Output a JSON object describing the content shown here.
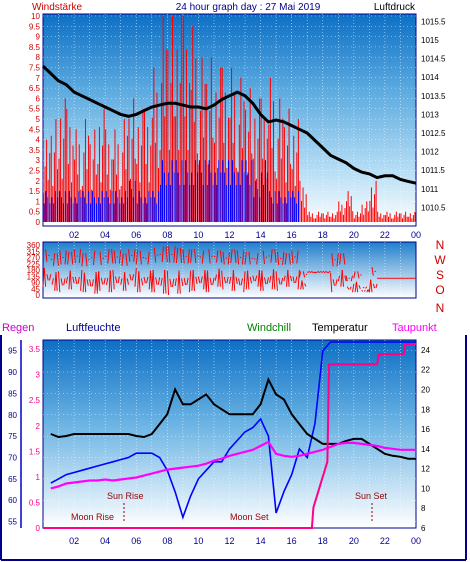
{
  "header": {
    "left_label": "Windstärke",
    "title": "24 hour graph day : 27 Mai 2019",
    "right_label": "Luftdruck"
  },
  "middle": {
    "compass": [
      "N",
      "W",
      "S",
      "O",
      "N"
    ]
  },
  "bottom_header": {
    "regen": "Regen",
    "luftfeuchte": "Luftfeuchte",
    "windchill": "Windchill",
    "temperatur": "Temperatur",
    "taupunkt": "Taupunkt"
  },
  "annotations": {
    "sun_rise": "Sun Rise",
    "sun_set": "Sun Set",
    "moon_rise": "Moon Rise",
    "moon_set": "Moon Set"
  },
  "colors": {
    "wind": "#ff0000",
    "gust": "#0000ff",
    "pressure": "#000000",
    "humidity": "#0000ff",
    "temperature": "#000000",
    "dewpoint": "#ff00ff",
    "rain": "#ff0088",
    "left_scale": "#cc0000",
    "right_scale": "#000000"
  },
  "chart_data": [
    {
      "type": "bar",
      "name_hint": "wind",
      "x": [
        0.5,
        1,
        1.5,
        2,
        2.5,
        3,
        3.5,
        4,
        4.5,
        5,
        5.5,
        6,
        6.5,
        7,
        7.5,
        8,
        8.5,
        9,
        9.5,
        10,
        10.5,
        11,
        11.5,
        12,
        12.5,
        13,
        13.5,
        14,
        14.5,
        15,
        15.5,
        16,
        16.5,
        17,
        17.5,
        18,
        18.5,
        19,
        19.5,
        20,
        20.5,
        21,
        21.5,
        22,
        22.5,
        23,
        23.5,
        24
      ],
      "wind_max": [
        4,
        5,
        6,
        5.5,
        4.5,
        5,
        4.5,
        5.5,
        4.5,
        4.5,
        5,
        6,
        5.5,
        5.5,
        7.5,
        10,
        10,
        10,
        10,
        9.5,
        8,
        8,
        7.5,
        7.5,
        7.5,
        7,
        6.5,
        6,
        6,
        7,
        6,
        5.5,
        5,
        2,
        0.5,
        0.5,
        0.5,
        0.5,
        1,
        1.5,
        0.5,
        1,
        2,
        0.5,
        0.5,
        0.5,
        0.5,
        0.5
      ],
      "gust_max": [
        1.5,
        1.5,
        1.5,
        1.5,
        1.5,
        1.5,
        1.5,
        1.5,
        1.5,
        1.5,
        1.5,
        2,
        1.5,
        1.5,
        1.5,
        3,
        3,
        3,
        3,
        3,
        3,
        3,
        3,
        3,
        3,
        3,
        3,
        2,
        3,
        1.5,
        1.5,
        1.5,
        1.5,
        0,
        0,
        0,
        0,
        0,
        0,
        0,
        0,
        0,
        0,
        0,
        0,
        0,
        0,
        0
      ],
      "y_left": [
        0,
        0.5,
        1,
        1.5,
        2,
        2.5,
        3,
        3.5,
        4,
        4.5,
        5,
        5.5,
        6,
        6.5,
        7,
        7.5,
        8,
        8.5,
        9,
        9.5,
        10
      ],
      "ylim_left": [
        0,
        10
      ],
      "y_right": [
        1010.5,
        1011,
        1011.5,
        1012,
        1012.5,
        1013,
        1013.5,
        1014,
        1014.5,
        1015,
        1015.5
      ],
      "ylim_right": [
        1010,
        1015.7
      ],
      "pressure_x": [
        0,
        0.5,
        1,
        1.5,
        2,
        2.5,
        3,
        3.5,
        4,
        4.5,
        5,
        5.5,
        6,
        6.5,
        7,
        7.5,
        8,
        8.5,
        9,
        9.5,
        10,
        10.5,
        11,
        11.5,
        12,
        12.5,
        13,
        13.5,
        14,
        14.5,
        15,
        15.5,
        16,
        16.5,
        17,
        17.5,
        18,
        18.5,
        19,
        19.5,
        20,
        20.5,
        21,
        21.5,
        22,
        22.5,
        23,
        23.5,
        24
      ],
      "pressure": [
        1014.3,
        1014.1,
        1013.9,
        1013.8,
        1013.6,
        1013.5,
        1013.4,
        1013.3,
        1013.2,
        1013.1,
        1013.0,
        1012.95,
        1013.0,
        1013.1,
        1013.2,
        1013.25,
        1013.3,
        1013.3,
        1013.25,
        1013.2,
        1013.2,
        1013.15,
        1013.25,
        1013.4,
        1013.5,
        1013.6,
        1013.5,
        1013.3,
        1013.0,
        1012.8,
        1012.85,
        1012.8,
        1012.7,
        1012.6,
        1012.5,
        1012.3,
        1012.1,
        1011.9,
        1011.8,
        1011.7,
        1011.55,
        1011.45,
        1011.4,
        1011.3,
        1011.35,
        1011.35,
        1011.25,
        1011.2,
        1011.15
      ],
      "x_ticks": [
        "02",
        "04",
        "06",
        "08",
        "10",
        "12",
        "14",
        "16",
        "18",
        "20",
        "22",
        "00"
      ]
    },
    {
      "type": "line",
      "name_hint": "wind-direction",
      "y_ticks": [
        0,
        45,
        90,
        135,
        180,
        225,
        270,
        315,
        360
      ],
      "ylim": [
        0,
        360
      ],
      "x": [
        0.5,
        1,
        1.5,
        2,
        2.5,
        3,
        3.5,
        4,
        4.5,
        5,
        5.5,
        6,
        6.5,
        7,
        7.5,
        8,
        8.5,
        9,
        9.5,
        10,
        10.5,
        11,
        11.5,
        12,
        12.5,
        13,
        13.5,
        14,
        14.5,
        15,
        15.5,
        16,
        16.5,
        17,
        17.5,
        18,
        18.5,
        19,
        19.5,
        20,
        20.5,
        21,
        21.5,
        22,
        22.5,
        23,
        23.5,
        24
      ],
      "dir_max": [
        330,
        300,
        320,
        310,
        330,
        300,
        320,
        310,
        330,
        320,
        300,
        330,
        320,
        310,
        340,
        350,
        350,
        340,
        330,
        330,
        320,
        330,
        320,
        310,
        330,
        320,
        310,
        300,
        320,
        330,
        310,
        300,
        320,
        170,
        170,
        170,
        170,
        300,
        300,
        140,
        170,
        60,
        200,
        120,
        120,
        120,
        120,
        120
      ],
      "dir_min": [
        60,
        30,
        20,
        40,
        30,
        20,
        10,
        30,
        20,
        40,
        30,
        60,
        20,
        40,
        20,
        10,
        0,
        10,
        20,
        30,
        40,
        20,
        60,
        40,
        30,
        20,
        40,
        60,
        30,
        40,
        30,
        60,
        40,
        40,
        160,
        160,
        160,
        20,
        60,
        20,
        20,
        20,
        20,
        120,
        120,
        120,
        120,
        120
      ],
      "x_ticks": [
        "02",
        "04",
        "06",
        "08",
        "10",
        "12",
        "14",
        "16",
        "18",
        "20",
        "22",
        "00"
      ]
    },
    {
      "type": "line",
      "name_hint": "climate",
      "x": [
        0.5,
        1,
        1.5,
        2,
        2.5,
        3,
        3.5,
        4,
        4.5,
        5,
        5.5,
        6,
        6.5,
        7,
        7.5,
        8,
        8.5,
        9,
        9.5,
        10,
        10.5,
        11,
        11.5,
        12,
        12.5,
        13,
        13.5,
        14,
        14.5,
        15,
        15.5,
        16,
        16.5,
        17,
        17.5,
        18,
        18.5,
        19,
        19.5,
        20,
        20.5,
        21,
        21.5,
        22,
        22.5,
        23,
        23.5,
        24
      ],
      "humidity_axis": [
        55,
        60,
        65,
        70,
        75,
        80,
        85,
        90,
        95
      ],
      "humidity_ylim": [
        53.5,
        97.5
      ],
      "temperature_axis": [
        6,
        8,
        10,
        12,
        14,
        16,
        18,
        20,
        22,
        24
      ],
      "temperature_ylim": [
        6,
        25
      ],
      "rain_axis": [
        0,
        0.5,
        1,
        1.5,
        2,
        2.5,
        3,
        3.5
      ],
      "rain_ylim": [
        0,
        3.6
      ],
      "humidity": [
        64,
        65,
        66,
        66.5,
        67,
        67.5,
        68,
        68.5,
        69,
        69.5,
        70,
        71,
        71,
        71,
        70,
        67,
        62,
        56,
        61,
        65,
        67,
        69,
        69,
        72,
        74,
        76,
        77,
        79,
        75,
        57,
        62,
        66,
        72,
        70,
        78,
        95,
        98,
        99,
        99,
        99,
        99.5,
        100,
        100,
        100,
        100,
        100,
        100,
        100
      ],
      "temperature": [
        15.5,
        15.2,
        15.3,
        15.5,
        15.5,
        15.5,
        15.5,
        15.5,
        15.5,
        15.5,
        15.5,
        15.3,
        15.2,
        15.5,
        16.5,
        17.5,
        20,
        18.5,
        18.5,
        19,
        19.5,
        18.5,
        18,
        17.5,
        17.5,
        17.5,
        17.5,
        18.5,
        21,
        19.5,
        19,
        17.5,
        16.5,
        15.5,
        15,
        14.5,
        14.5,
        14.5,
        14.8,
        15,
        15,
        14.5,
        14,
        13.5,
        13.3,
        13.2,
        13,
        13
      ],
      "dewpoint": [
        10,
        10.2,
        10.5,
        10.6,
        10.7,
        10.8,
        10.8,
        10.9,
        10.8,
        10.9,
        11,
        11.1,
        11.3,
        11.5,
        11.7,
        11.9,
        12,
        12.1,
        12.2,
        12.3,
        12.5,
        12.8,
        13,
        13.3,
        13.5,
        13.7,
        13.9,
        14.3,
        14.7,
        13.5,
        13.3,
        13.2,
        13.3,
        13.5,
        13.7,
        13.9,
        14.2,
        14.5,
        14.6,
        14.6,
        14.5,
        14.4,
        14.3,
        14.1,
        14,
        13.9,
        13.9,
        13.9
      ],
      "rain_x": [
        0,
        17.3,
        17.4,
        18.3,
        18.4,
        21.5,
        21.6,
        23.2,
        23.3,
        24
      ],
      "rain": [
        0,
        0,
        0.4,
        1.3,
        3.2,
        3.2,
        3.4,
        3.4,
        3.6,
        3.6
      ],
      "x_ticks": [
        "02",
        "04",
        "06",
        "08",
        "10",
        "12",
        "14",
        "16",
        "18",
        "20",
        "22",
        "00"
      ]
    }
  ]
}
